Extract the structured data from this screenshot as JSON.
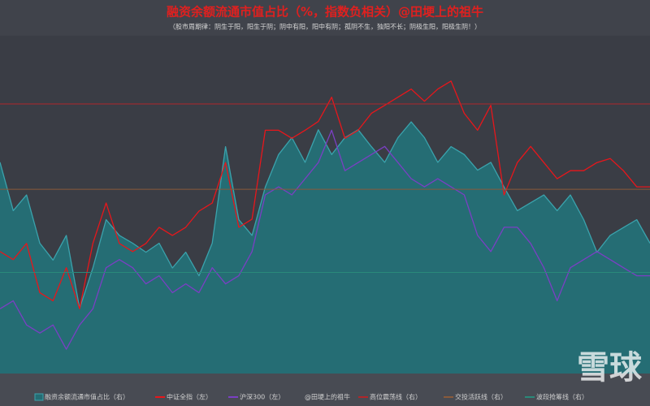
{
  "chart_data": {
    "type": "line",
    "title": "融资余额流通市值占比（%，指数负相关）@田埂上的祖牛",
    "subtitle": "（股市周期律：阴生于阳，阳生于阴；阴中有阳，阳中有阴；孤阴不生，独阳不长；阴极生阳，阳极生阴！）",
    "ylim": [
      2000,
      7000
    ],
    "y2lim": [
      1,
      4
    ],
    "series": [
      {
        "name": "融资余额流通市值占比（右）",
        "color": "#3aa3ad",
        "fill": "#256d74",
        "area": true,
        "axis": "y2",
        "values": [
          2.88,
          2.45,
          2.59,
          2.16,
          2.01,
          2.23,
          1.58,
          1.94,
          2.37,
          2.23,
          2.16,
          2.08,
          2.16,
          1.94,
          2.08,
          1.87,
          2.16,
          3.02,
          2.37,
          2.23,
          2.66,
          2.95,
          3.1,
          2.88,
          3.17,
          2.95,
          3.1,
          3.17,
          3.02,
          2.88,
          3.1,
          3.24,
          3.1,
          2.88,
          3.02,
          2.95,
          2.81,
          2.88,
          2.66,
          2.45,
          2.52,
          2.59,
          2.45,
          2.59,
          2.37,
          2.08,
          2.23,
          2.3,
          2.37,
          2.16
        ]
      },
      {
        "name": "中证全指（左）",
        "color": "#e8161b",
        "axis": "y",
        "values": [
          3810,
          3690,
          3930,
          3200,
          3080,
          3570,
          2960,
          3930,
          4530,
          3930,
          3810,
          3930,
          4170,
          4050,
          4170,
          4410,
          4530,
          5130,
          4170,
          4290,
          5610,
          5610,
          5490,
          5610,
          5740,
          6100,
          5490,
          5610,
          5860,
          5980,
          6100,
          6220,
          6040,
          6220,
          6340,
          5860,
          5610,
          5980,
          4650,
          5130,
          5370,
          5130,
          4890,
          5010,
          5010,
          5130,
          5190,
          5010,
          4770,
          4770
        ]
      },
      {
        "name": "沪深300（左）",
        "color": "#7b3fc4",
        "axis": "y",
        "values": [
          2960,
          3080,
          2720,
          2600,
          2720,
          2360,
          2720,
          2960,
          3570,
          3690,
          3570,
          3330,
          3450,
          3200,
          3330,
          3200,
          3570,
          3330,
          3450,
          3810,
          4650,
          4770,
          4650,
          4890,
          5130,
          5610,
          5010,
          5130,
          5250,
          5370,
          5130,
          4890,
          4770,
          4890,
          4770,
          4650,
          4050,
          3810,
          4170,
          4170,
          3930,
          3570,
          3080,
          3570,
          3690,
          3810,
          3690,
          3570,
          3450,
          3450
        ]
      }
    ],
    "legend_note": "@田埂上的祖牛",
    "hlines": [
      {
        "name": "高位震荡线（右）",
        "color": "#b0262a",
        "axis": "y2",
        "value": 3.4
      },
      {
        "name": "交投活跃线（右）",
        "color": "#8a5a3a",
        "axis": "y2",
        "value": 2.64
      },
      {
        "name": "波段抢筹线（右）",
        "color": "#2a8a7a",
        "axis": "y2",
        "value": 1.9
      }
    ],
    "watermark": "雪球"
  }
}
